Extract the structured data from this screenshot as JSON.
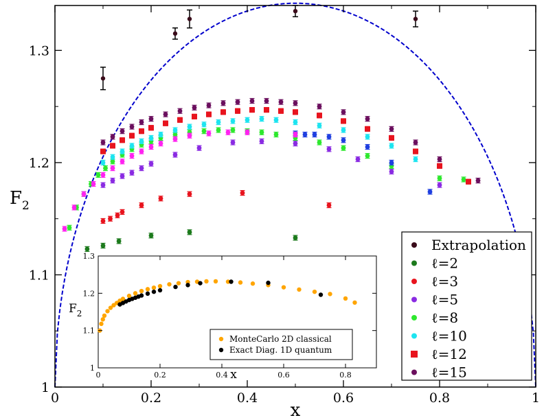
{
  "chart_data": {
    "type": "scatter",
    "xlabel": "x",
    "ylabel_main": "F",
    "ylabel_sub": "2",
    "xlim": [
      0,
      1
    ],
    "ylim": [
      1.0,
      1.34
    ],
    "xticks": [
      0,
      0.2,
      0.4,
      0.6,
      0.8,
      1
    ],
    "xtick_labels": [
      "0",
      "0.2",
      "0.4",
      "0.6",
      "0.8",
      "1"
    ],
    "yticks": [
      1.0,
      1.1,
      1.2,
      1.3
    ],
    "ytick_labels": [
      "1",
      "1.1",
      "1.2",
      "1.3"
    ],
    "legend_position": "bottom-right",
    "curve": {
      "name": "dashed-fit",
      "color": "#0000cc",
      "amplitude": 0.342
    },
    "series": [
      {
        "name": "Extrapolation",
        "color": "#3a0b1a",
        "marker": "circle",
        "x": [
          0.1,
          0.25,
          0.28,
          0.5,
          0.75
        ],
        "y": [
          1.275,
          1.315,
          1.328,
          1.335,
          1.328
        ],
        "err": [
          0.01,
          0.005,
          0.008,
          0.005,
          0.007
        ]
      },
      {
        "name": "ℓ=2",
        "color": "#1c7a1c",
        "marker": "circle",
        "x": [
          0.067,
          0.1,
          0.133,
          0.2,
          0.28,
          0.5
        ],
        "y": [
          1.123,
          1.126,
          1.13,
          1.135,
          1.138,
          1.133
        ]
      },
      {
        "name": "ℓ=3",
        "color": "#e8141e",
        "marker": "circle",
        "x": [
          0.1,
          0.115,
          0.13,
          0.14,
          0.18,
          0.22,
          0.28,
          0.39,
          0.57
        ],
        "y": [
          1.148,
          1.15,
          1.153,
          1.156,
          1.162,
          1.168,
          1.172,
          1.173,
          1.162
        ]
      },
      {
        "name": "ℓ=5",
        "color": "#8a2be2",
        "marker": "circle",
        "x": [
          0.1,
          0.12,
          0.14,
          0.16,
          0.18,
          0.2,
          0.25,
          0.3,
          0.37,
          0.43,
          0.5,
          0.57,
          0.63,
          0.7,
          0.8
        ],
        "y": [
          1.18,
          1.184,
          1.188,
          1.191,
          1.195,
          1.199,
          1.207,
          1.213,
          1.218,
          1.219,
          1.217,
          1.212,
          1.203,
          1.192,
          1.18
        ]
      },
      {
        "name": "ℓ=8",
        "color": "#2ee82e",
        "marker": "circle",
        "x": [
          0.03,
          0.045,
          0.06,
          0.075,
          0.09,
          0.105,
          0.12,
          0.14,
          0.16,
          0.18,
          0.2,
          0.22,
          0.25,
          0.28,
          0.31,
          0.34,
          0.37,
          0.4,
          0.43,
          0.46,
          0.5,
          0.55,
          0.6,
          0.65,
          0.7,
          0.8,
          0.85
        ],
        "y": [
          1.142,
          1.16,
          1.172,
          1.181,
          1.189,
          1.195,
          1.201,
          1.207,
          1.212,
          1.216,
          1.219,
          1.222,
          1.225,
          1.227,
          1.228,
          1.229,
          1.229,
          1.228,
          1.227,
          1.225,
          1.222,
          1.218,
          1.213,
          1.206,
          1.197,
          1.186,
          1.185
        ]
      },
      {
        "name": "ℓ=10",
        "color": "#1de4f0",
        "marker": "circle",
        "x": [
          0.1,
          0.12,
          0.14,
          0.16,
          0.18,
          0.2,
          0.22,
          0.25,
          0.28,
          0.31,
          0.34,
          0.37,
          0.4,
          0.43,
          0.46,
          0.5,
          0.55,
          0.6,
          0.65,
          0.7,
          0.75
        ],
        "y": [
          1.2,
          1.205,
          1.21,
          1.215,
          1.219,
          1.222,
          1.225,
          1.229,
          1.232,
          1.234,
          1.236,
          1.237,
          1.238,
          1.239,
          1.238,
          1.236,
          1.233,
          1.229,
          1.223,
          1.215,
          1.203
        ]
      },
      {
        "name": "ℓ=12",
        "color": "#e8141e",
        "marker": "square",
        "x": [
          0.1,
          0.12,
          0.14,
          0.16,
          0.18,
          0.2,
          0.23,
          0.26,
          0.29,
          0.32,
          0.35,
          0.38,
          0.41,
          0.44,
          0.47,
          0.5,
          0.55,
          0.6,
          0.65,
          0.7,
          0.75,
          0.8,
          0.86
        ],
        "y": [
          1.21,
          1.215,
          1.22,
          1.224,
          1.228,
          1.231,
          1.235,
          1.238,
          1.241,
          1.243,
          1.245,
          1.246,
          1.247,
          1.247,
          1.246,
          1.245,
          1.242,
          1.237,
          1.23,
          1.222,
          1.21,
          1.197,
          1.183
        ]
      },
      {
        "name": "ℓ=15",
        "color": "#6b0f5e",
        "marker": "circle",
        "x": [
          0.1,
          0.12,
          0.14,
          0.16,
          0.18,
          0.2,
          0.23,
          0.26,
          0.29,
          0.32,
          0.35,
          0.38,
          0.41,
          0.44,
          0.47,
          0.5,
          0.55,
          0.6,
          0.65,
          0.7,
          0.75,
          0.8,
          0.88
        ],
        "y": [
          1.218,
          1.223,
          1.228,
          1.232,
          1.236,
          1.239,
          1.243,
          1.246,
          1.249,
          1.251,
          1.253,
          1.254,
          1.255,
          1.255,
          1.254,
          1.253,
          1.25,
          1.245,
          1.239,
          1.23,
          1.218,
          1.203,
          1.184
        ]
      },
      {
        "name": "blue-dots",
        "color": "#1f3fe0",
        "marker": "circle",
        "legend": false,
        "x": [
          0.5,
          0.52,
          0.54,
          0.57,
          0.6,
          0.65,
          0.7,
          0.78
        ],
        "y": [
          1.226,
          1.225,
          1.225,
          1.223,
          1.22,
          1.214,
          1.2,
          1.174
        ]
      },
      {
        "name": "magenta-dots",
        "color": "#ff22f0",
        "marker": "circle",
        "legend": false,
        "x": [
          0.02,
          0.04,
          0.06,
          0.08,
          0.1,
          0.12,
          0.14,
          0.16,
          0.18,
          0.2,
          0.22,
          0.25,
          0.28,
          0.32,
          0.36,
          0.4,
          0.5
        ],
        "y": [
          1.141,
          1.16,
          1.172,
          1.181,
          1.189,
          1.195,
          1.201,
          1.206,
          1.21,
          1.214,
          1.217,
          1.221,
          1.224,
          1.226,
          1.227,
          1.227,
          1.225
        ]
      }
    ],
    "inset": {
      "xlabel": "x",
      "ylabel_main": "F",
      "ylabel_sub": "2",
      "xlim": [
        0,
        0.9
      ],
      "ylim": [
        1.0,
        1.3
      ],
      "xticks": [
        0,
        0.2,
        0.4,
        0.6,
        0.8
      ],
      "xtick_labels": [
        "0",
        "0.2",
        "0.4",
        "0.6",
        "0.8"
      ],
      "yticks": [
        1.0,
        1.1,
        1.2,
        1.3
      ],
      "ytick_labels": [
        "1",
        "1.1",
        "1.2",
        "1.3"
      ],
      "legend_position": "bottom-right",
      "series": [
        {
          "name": "MonteCarlo 2D classical",
          "color": "#ffa500",
          "x": [
            0.005,
            0.01,
            0.015,
            0.02,
            0.03,
            0.04,
            0.05,
            0.06,
            0.07,
            0.08,
            0.1,
            0.12,
            0.14,
            0.16,
            0.18,
            0.2,
            0.23,
            0.26,
            0.29,
            0.32,
            0.35,
            0.38,
            0.42,
            0.46,
            0.5,
            0.55,
            0.6,
            0.65,
            0.7,
            0.75,
            0.8,
            0.83
          ],
          "y": [
            1.1,
            1.118,
            1.13,
            1.14,
            1.152,
            1.161,
            1.168,
            1.174,
            1.18,
            1.185,
            1.193,
            1.2,
            1.206,
            1.211,
            1.215,
            1.219,
            1.224,
            1.227,
            1.23,
            1.231,
            1.232,
            1.232,
            1.231,
            1.229,
            1.226,
            1.222,
            1.216,
            1.21,
            1.204,
            1.198,
            1.186,
            1.175
          ]
        },
        {
          "name": "Exact Diag. 1D quantum",
          "color": "#000000",
          "x": [
            0.07,
            0.08,
            0.09,
            0.1,
            0.11,
            0.12,
            0.13,
            0.14,
            0.16,
            0.18,
            0.2,
            0.25,
            0.29,
            0.33,
            0.43,
            0.55,
            0.72
          ],
          "y": [
            1.17,
            1.174,
            1.178,
            1.182,
            1.185,
            1.188,
            1.191,
            1.194,
            1.199,
            1.204,
            1.208,
            1.217,
            1.222,
            1.227,
            1.231,
            1.228,
            1.196
          ]
        }
      ]
    }
  }
}
